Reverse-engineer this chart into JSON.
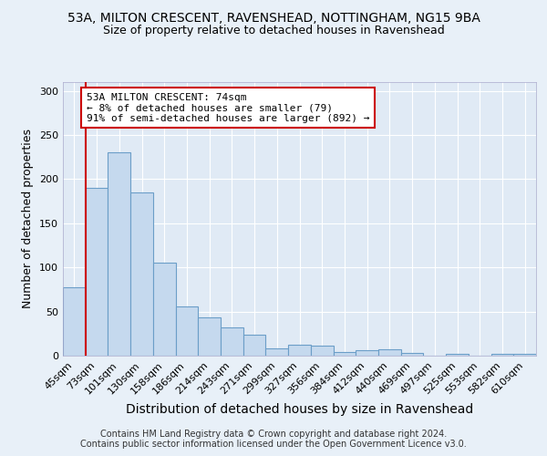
{
  "title1": "53A, MILTON CRESCENT, RAVENSHEAD, NOTTINGHAM, NG15 9BA",
  "title2": "Size of property relative to detached houses in Ravenshead",
  "xlabel": "Distribution of detached houses by size in Ravenshead",
  "ylabel": "Number of detached properties",
  "footnote": "Contains HM Land Registry data © Crown copyright and database right 2024.\nContains public sector information licensed under the Open Government Licence v3.0.",
  "bar_labels": [
    "45sqm",
    "73sqm",
    "101sqm",
    "130sqm",
    "158sqm",
    "186sqm",
    "214sqm",
    "243sqm",
    "271sqm",
    "299sqm",
    "327sqm",
    "356sqm",
    "384sqm",
    "412sqm",
    "440sqm",
    "469sqm",
    "497sqm",
    "525sqm",
    "553sqm",
    "582sqm",
    "610sqm"
  ],
  "bar_values": [
    78,
    190,
    230,
    185,
    105,
    56,
    43,
    32,
    24,
    8,
    12,
    11,
    4,
    6,
    7,
    3,
    0,
    2,
    0,
    2,
    2
  ],
  "bar_color": "#c5d9ee",
  "bar_edge_color": "#6b9ec8",
  "annotation_line1": "53A MILTON CRESCENT: 74sqm",
  "annotation_line2": "← 8% of detached houses are smaller (79)",
  "annotation_line3": "91% of semi-detached houses are larger (892) →",
  "annotation_box_color": "#ffffff",
  "annotation_box_edge": "#cc0000",
  "vline_color": "#cc0000",
  "vline_x_index": 0.5,
  "ylim": [
    0,
    310
  ],
  "yticks": [
    0,
    50,
    100,
    150,
    200,
    250,
    300
  ],
  "background_color": "#e8f0f8",
  "plot_bg_color": "#e0eaf5",
  "grid_color": "#ffffff",
  "title1_fontsize": 10,
  "title2_fontsize": 9,
  "ylabel_fontsize": 9,
  "xlabel_fontsize": 10,
  "tick_fontsize": 8,
  "footnote_fontsize": 7
}
